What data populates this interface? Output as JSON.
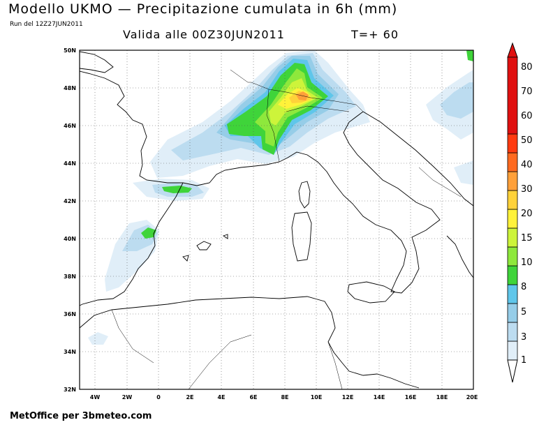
{
  "header": {
    "title": "Modello UKMO — Precipitazione cumulata in 6h (mm)",
    "run": "Run del 12Z27JUN2011",
    "valid": "Valida alle 00Z30JUN2011",
    "tstep": "T=+ 60"
  },
  "footer": {
    "credit": "MetOffice per 3bmeteo.com"
  },
  "axes": {
    "lat_labels": [
      "50N",
      "48N",
      "46N",
      "44N",
      "42N",
      "40N",
      "38N",
      "36N",
      "34N",
      "32N"
    ],
    "lon_labels": [
      "4W",
      "2W",
      "0",
      "2E",
      "4E",
      "6E",
      "8E",
      "10E",
      "12E",
      "14E",
      "16E",
      "18E",
      "20E"
    ],
    "lat_range": [
      32,
      50
    ],
    "lon_range": [
      -5,
      20
    ]
  },
  "colorbar": {
    "levels": [
      "1",
      "3",
      "5",
      "8",
      "10",
      "15",
      "20",
      "30",
      "40",
      "50",
      "60",
      "70",
      "80"
    ],
    "colors": [
      "#e0eef8",
      "#bcdcf0",
      "#96cde8",
      "#5fc6ea",
      "#3fd43a",
      "#8ee83c",
      "#cdf43a",
      "#fff23a",
      "#ffd23a",
      "#ffa03a",
      "#ff6a20",
      "#ff3a10",
      "#e01010"
    ]
  }
}
